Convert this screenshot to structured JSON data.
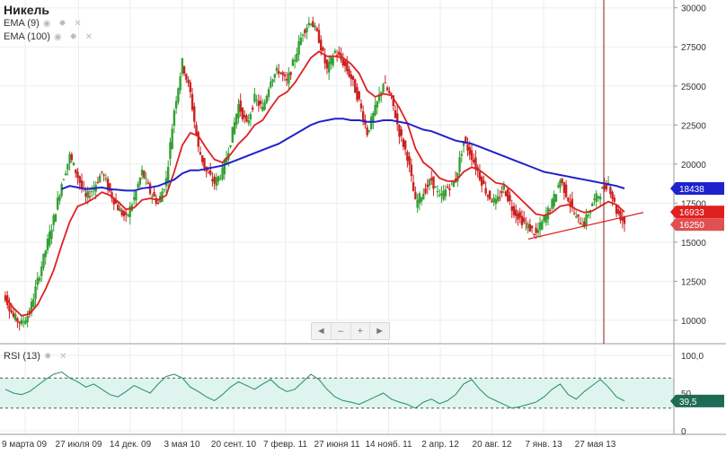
{
  "title": "Никель",
  "indicators": [
    {
      "name": "EMA (9)",
      "color": "#e02020"
    },
    {
      "name": "EMA (100)",
      "color": "#1e22cc"
    }
  ],
  "rsi_label": "RSI (13)",
  "nav": {
    "prev": "◄",
    "minus": "–",
    "plus": "+",
    "next": "►"
  },
  "colors": {
    "up": "#33a033",
    "down": "#cc2222",
    "ema9": "#e02020",
    "ema100": "#1e22cc",
    "rsi": "#2a8a6a",
    "rsi_band": "#ddf5ee",
    "cursor": "#8b1a1a"
  },
  "chart_data": [
    {
      "type": "line",
      "title": "Никель",
      "ylim": [
        8500,
        30500
      ],
      "yticks": [
        "10000",
        "12500",
        "15000",
        "17500",
        "20000",
        "22500",
        "25000",
        "27500",
        "30000"
      ],
      "xticks": [
        "9 марта 09",
        "27 июля 09",
        "14 дек. 09",
        "3 мая 10",
        "20 сент. 10",
        "7 февр. 11",
        "27 июня 11",
        "14 нояб. 11",
        "2 апр. 12",
        "20 авг. 12",
        "7 янв. 13",
        "27 мая 13"
      ],
      "price": [
        11500,
        10200,
        9800,
        10500,
        12500,
        14500,
        16500,
        18800,
        20500,
        19200,
        17800,
        18500,
        19500,
        18200,
        17200,
        16500,
        17800,
        19500,
        18200,
        17500,
        19000,
        23500,
        26500,
        24500,
        21000,
        19500,
        18800,
        19500,
        21500,
        23800,
        22500,
        24200,
        23500,
        25500,
        26000,
        25200,
        26800,
        28500,
        29200,
        28000,
        26000,
        27200,
        26500,
        25500,
        24000,
        22000,
        23500,
        25200,
        24200,
        22000,
        20500,
        17500,
        18200,
        19000,
        17800,
        18500,
        19000,
        21500,
        20500,
        19200,
        18000,
        17500,
        18500,
        17200,
        16500,
        16000,
        15500,
        16500,
        17500,
        19000,
        17800,
        16500,
        16200,
        17500,
        18200,
        18800,
        17000,
        16250
      ],
      "series": [
        {
          "name": "EMA (9)",
          "values": [
            11500,
            10800,
            10300,
            10400,
            11000,
            12000,
            13200,
            14800,
            16300,
            17300,
            17500,
            17800,
            18200,
            18000,
            17600,
            17100,
            17200,
            17700,
            17800,
            17700,
            18000,
            19500,
            21200,
            22000,
            21800,
            21000,
            20300,
            20100,
            20600,
            21300,
            21800,
            22500,
            22800,
            23600,
            24300,
            24600,
            25200,
            26000,
            26800,
            27200,
            26900,
            26900,
            26800,
            26400,
            25800,
            24700,
            24300,
            24500,
            24400,
            23600,
            22600,
            21000,
            20100,
            19700,
            19100,
            18900,
            18900,
            19500,
            19800,
            19600,
            19200,
            18800,
            18700,
            18300,
            17800,
            17300,
            16800,
            16700,
            16900,
            17300,
            17400,
            17100,
            16900,
            17000,
            17300,
            17600,
            17400,
            16933
          ]
        },
        {
          "name": "EMA (100)",
          "values": [
            null,
            null,
            null,
            null,
            null,
            null,
            null,
            18400,
            18600,
            18500,
            18400,
            18450,
            18500,
            18400,
            18350,
            18300,
            18300,
            18450,
            18500,
            18600,
            18800,
            19000,
            19400,
            19600,
            19600,
            19700,
            19800,
            19900,
            20100,
            20300,
            20500,
            20700,
            20900,
            21100,
            21300,
            21600,
            21900,
            22200,
            22500,
            22700,
            22800,
            22900,
            22900,
            22800,
            22800,
            22700,
            22700,
            22800,
            22800,
            22700,
            22600,
            22400,
            22200,
            22100,
            21900,
            21700,
            21500,
            21400,
            21300,
            21100,
            20900,
            20700,
            20500,
            20300,
            20100,
            19900,
            19700,
            19500,
            19400,
            19300,
            19200,
            19100,
            19000,
            18900,
            18800,
            18700,
            18600,
            18438
          ]
        }
      ],
      "price_labels": [
        "18438",
        "16933",
        "16250"
      ],
      "last_values": {
        "ema100": 18438,
        "ema9": 16933,
        "close": 16250
      }
    },
    {
      "type": "line",
      "title": "RSI (13)",
      "ylim": [
        0,
        100
      ],
      "yticks": [
        "0",
        "50",
        "100,0"
      ],
      "band": [
        30,
        70
      ],
      "values": [
        55,
        50,
        48,
        52,
        60,
        68,
        75,
        78,
        70,
        65,
        58,
        62,
        55,
        48,
        45,
        52,
        60,
        55,
        50,
        62,
        72,
        75,
        70,
        58,
        52,
        45,
        40,
        48,
        58,
        65,
        60,
        55,
        62,
        68,
        58,
        52,
        55,
        65,
        75,
        68,
        55,
        45,
        40,
        38,
        35,
        40,
        45,
        50,
        42,
        38,
        35,
        30,
        38,
        42,
        36,
        40,
        48,
        62,
        68,
        55,
        45,
        40,
        35,
        30,
        32,
        35,
        38,
        45,
        55,
        62,
        48,
        42,
        52,
        60,
        68,
        58,
        45,
        39.5
      ],
      "last_label": "39,5"
    }
  ]
}
